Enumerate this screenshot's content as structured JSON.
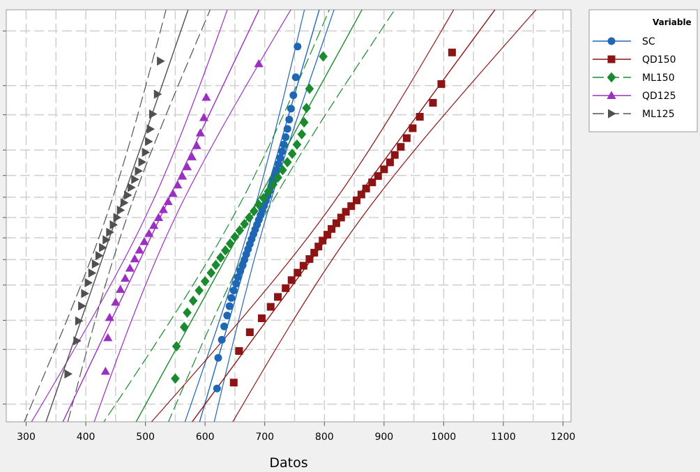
{
  "chart_data": {
    "type": "scatter",
    "xlabel": "Datos",
    "ylabel": "",
    "xlim": [
      290,
      1220
    ],
    "xticks": [
      300,
      400,
      500,
      600,
      700,
      800,
      900,
      1000,
      1100,
      1200
    ],
    "grid": true,
    "legend_position": "top-right",
    "legend_title": "Variable",
    "series": [
      {
        "name": "SC",
        "color": "#1f66b5",
        "marker": "circle",
        "line_style": "solid",
        "values": [
          620,
          622,
          628,
          632,
          637,
          641,
          644,
          648,
          652,
          655,
          659,
          663,
          666,
          669,
          672,
          675,
          678,
          681,
          684,
          687,
          690,
          693,
          696,
          699,
          702,
          705,
          708,
          711,
          714,
          717,
          720,
          723,
          726,
          729,
          732,
          735,
          738,
          741,
          744,
          748,
          752,
          755
        ]
      },
      {
        "name": "QD150",
        "color": "#8c1414",
        "marker": "square",
        "line_style": "solid",
        "values": [
          648,
          657,
          675,
          695,
          710,
          722,
          735,
          745,
          755,
          765,
          775,
          783,
          790,
          797,
          805,
          812,
          820,
          828,
          836,
          845,
          854,
          862,
          870,
          880,
          890,
          900,
          910,
          918,
          928,
          938,
          948,
          960,
          982,
          996,
          1014
        ]
      },
      {
        "name": "ML150",
        "color": "#1a8a2e",
        "marker": "diamond",
        "line_style": "dashed",
        "values": [
          550,
          552,
          565,
          570,
          580,
          590,
          600,
          610,
          618,
          626,
          634,
          642,
          650,
          658,
          666,
          674,
          682,
          690,
          698,
          706,
          714,
          722,
          730,
          738,
          746,
          754,
          762,
          766,
          770,
          775,
          798
        ]
      },
      {
        "name": "QD125",
        "color": "#9b2fc2",
        "marker": "triangle",
        "line_style": "solid",
        "values": [
          433,
          437,
          440,
          450,
          458,
          466,
          474,
          482,
          490,
          498,
          506,
          514,
          522,
          530,
          538,
          546,
          554,
          562,
          570,
          578,
          586,
          592,
          598,
          602,
          690
        ]
      },
      {
        "name": "ML125",
        "color": "#505050",
        "marker": "triangle-right",
        "line_style": "dashed",
        "values": [
          370,
          385,
          388,
          393,
          398,
          404,
          410,
          416,
          422,
          428,
          434,
          440,
          446,
          452,
          458,
          464,
          470,
          476,
          482,
          488,
          494,
          500,
          505,
          508,
          512,
          520,
          525
        ]
      }
    ]
  }
}
